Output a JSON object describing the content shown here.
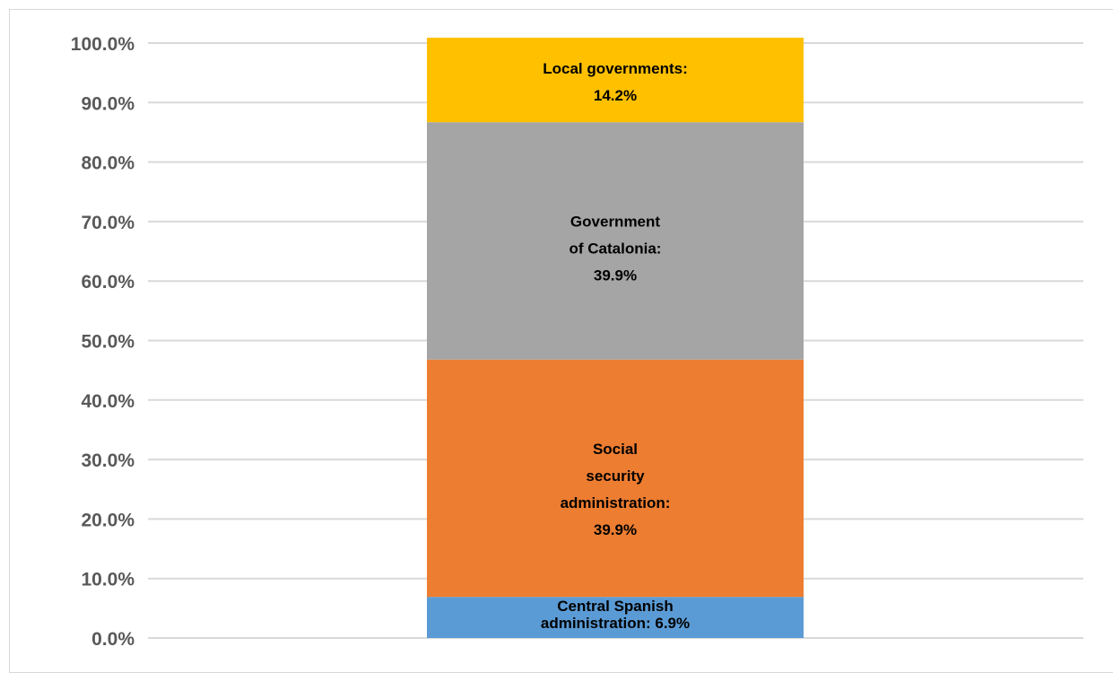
{
  "chart_data": {
    "type": "bar",
    "stacked": true,
    "categories": [
      ""
    ],
    "series": [
      {
        "name": "Central Spanish administration",
        "values": [
          6.9
        ],
        "color": "#5b9bd5",
        "label_lines": [
          "Central Spanish",
          "administration: 6.9%"
        ]
      },
      {
        "name": "Social security administration",
        "values": [
          39.9
        ],
        "color": "#ed7d31",
        "label_lines": [
          "Social",
          "security",
          "administration:",
          "39.9%"
        ]
      },
      {
        "name": "Government of Catalonia",
        "values": [
          39.9
        ],
        "color": "#a5a5a5",
        "label_lines": [
          "Government",
          "of Catalonia:",
          "39.9%"
        ]
      },
      {
        "name": "Local governments",
        "values": [
          14.2
        ],
        "color": "#ffc000",
        "label_lines": [
          "Local governments:",
          "14.2%"
        ]
      }
    ],
    "title": "",
    "xlabel": "",
    "ylabel": "",
    "ylim": [
      0,
      100
    ],
    "yticks": [
      "0.0%",
      "10.0%",
      "20.0%",
      "30.0%",
      "40.0%",
      "50.0%",
      "60.0%",
      "70.0%",
      "80.0%",
      "90.0%",
      "100.0%"
    ],
    "grid": true,
    "legend": "none"
  }
}
